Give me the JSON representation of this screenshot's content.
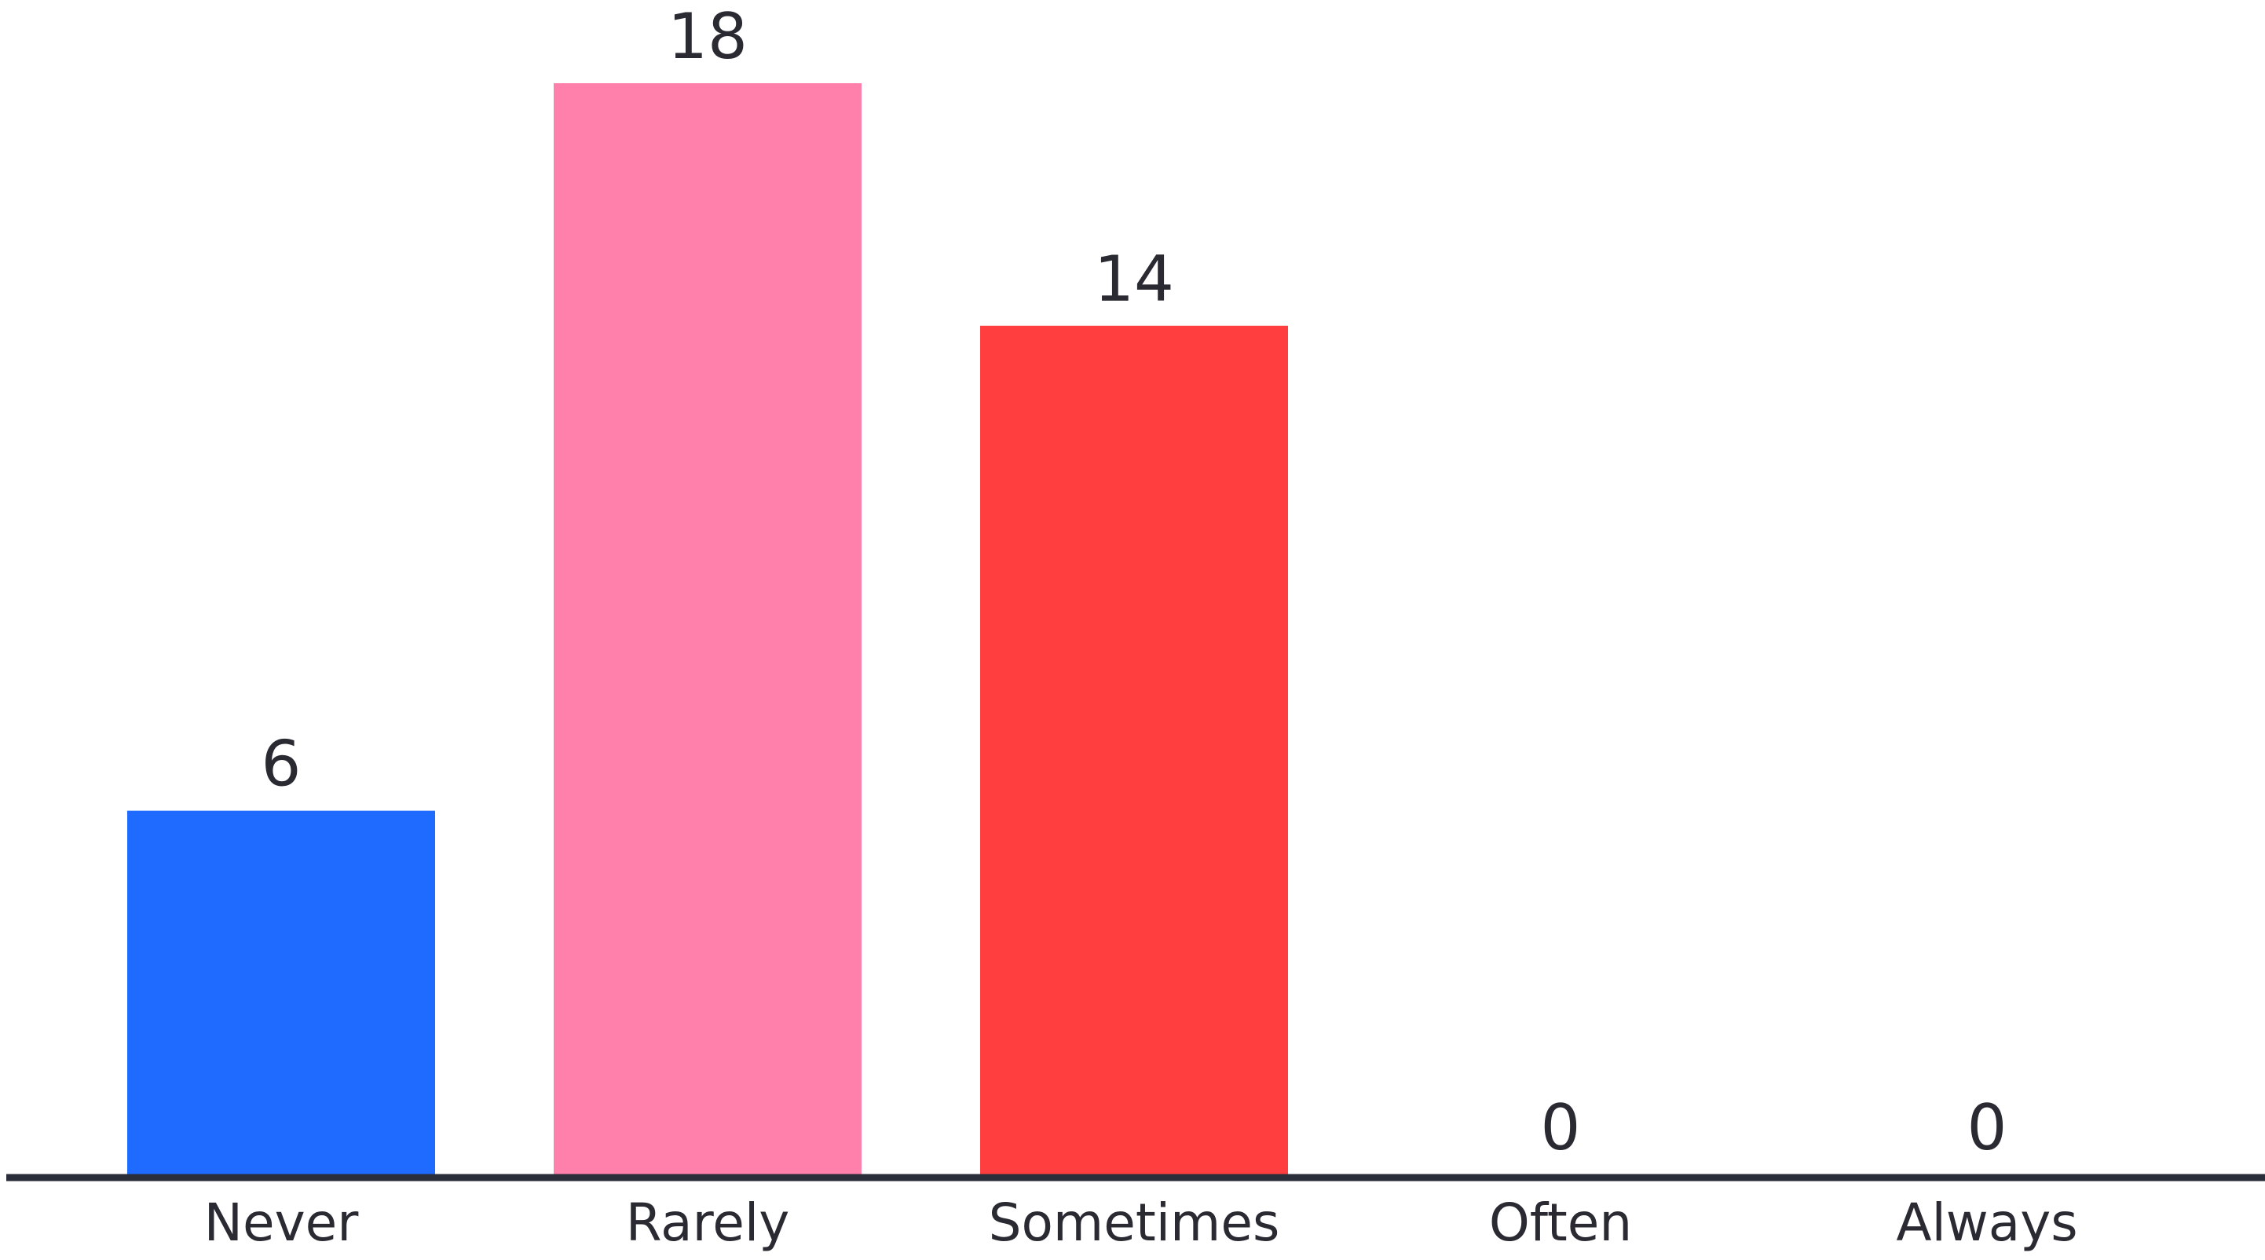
{
  "chart_data": {
    "type": "bar",
    "categories": [
      "Never",
      "Rarely",
      "Sometimes",
      "Often",
      "Always"
    ],
    "values": [
      6,
      18,
      14,
      0,
      0
    ],
    "colors": [
      "#1f6bff",
      "#ff80ab",
      "#ff3f3f",
      "#b0b0b0",
      "#b0b0b0"
    ],
    "ylim": [
      0,
      18
    ],
    "grid": false,
    "value_labels": true
  }
}
